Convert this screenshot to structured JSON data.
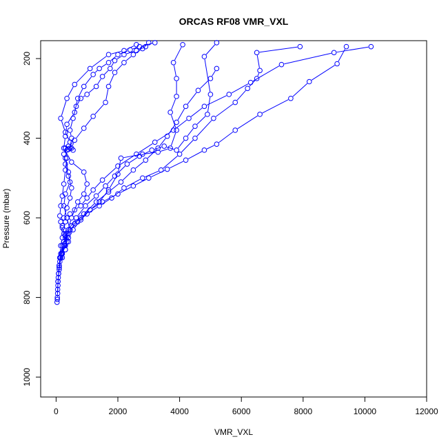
{
  "chart_data": {
    "type": "scatter",
    "title": "ORCAS RF08 VMR_VXL",
    "xlabel": "VMR_VXL",
    "ylabel": "Pressure (mbar)",
    "xlim": [
      -500,
      12000
    ],
    "ylim": [
      1050,
      155
    ],
    "y_reversed": true,
    "grid": false,
    "legend": "none",
    "color": "#0000ff",
    "xticks": [
      0,
      2000,
      4000,
      6000,
      8000,
      10000,
      12000
    ],
    "yticks": [
      200,
      400,
      600,
      800,
      1000
    ],
    "series": [
      {
        "values": [
          [
            30,
            812
          ],
          [
            40,
            805
          ],
          [
            50,
            790
          ],
          [
            60,
            770
          ],
          [
            70,
            750
          ],
          [
            100,
            730
          ],
          [
            120,
            700
          ],
          [
            150,
            670
          ],
          [
            200,
            650
          ],
          [
            250,
            630
          ],
          [
            300,
            610
          ],
          [
            350,
            600
          ],
          [
            450,
            590
          ],
          [
            600,
            580
          ],
          [
            800,
            570
          ],
          [
            1000,
            550
          ],
          [
            1200,
            530
          ],
          [
            1500,
            505
          ],
          [
            2000,
            470
          ],
          [
            2600,
            440
          ],
          [
            3200,
            410
          ],
          [
            3800,
            380
          ],
          [
            4300,
            350
          ],
          [
            4800,
            320
          ],
          [
            5600,
            290
          ],
          [
            6300,
            260
          ],
          [
            7300,
            215
          ],
          [
            9000,
            185
          ],
          [
            10200,
            170
          ]
        ]
      },
      {
        "values": [
          [
            40,
            800
          ],
          [
            60,
            760
          ],
          [
            100,
            720
          ],
          [
            150,
            690
          ],
          [
            250,
            660
          ],
          [
            350,
            640
          ],
          [
            500,
            620
          ],
          [
            800,
            600
          ],
          [
            1100,
            580
          ],
          [
            1500,
            560
          ],
          [
            2000,
            540
          ],
          [
            2500,
            520
          ],
          [
            3000,
            500
          ],
          [
            3600,
            478
          ],
          [
            4200,
            455
          ],
          [
            4800,
            430
          ],
          [
            5200,
            415
          ],
          [
            5800,
            380
          ],
          [
            6600,
            340
          ],
          [
            7600,
            300
          ],
          [
            8200,
            258
          ],
          [
            9100,
            213
          ],
          [
            9400,
            170
          ]
        ]
      },
      {
        "values": [
          [
            50,
            780
          ],
          [
            80,
            740
          ],
          [
            120,
            700
          ],
          [
            200,
            670
          ],
          [
            300,
            650
          ],
          [
            450,
            630
          ],
          [
            700,
            610
          ],
          [
            1000,
            590
          ],
          [
            1400,
            570
          ],
          [
            1800,
            550
          ],
          [
            2200,
            525
          ],
          [
            2800,
            500
          ],
          [
            3400,
            480
          ],
          [
            4000,
            440
          ],
          [
            4500,
            400
          ],
          [
            5100,
            350
          ],
          [
            5800,
            310
          ],
          [
            6200,
            275
          ],
          [
            6500,
            250
          ],
          [
            6600,
            230
          ],
          [
            6500,
            185
          ],
          [
            7900,
            170
          ]
        ]
      },
      {
        "values": [
          [
            60,
            760
          ],
          [
            100,
            725
          ],
          [
            180,
            690
          ],
          [
            280,
            665
          ],
          [
            400,
            640
          ],
          [
            600,
            615
          ],
          [
            900,
            590
          ],
          [
            1300,
            560
          ],
          [
            1700,
            535
          ],
          [
            2100,
            510
          ],
          [
            2500,
            480
          ],
          [
            2900,
            455
          ],
          [
            3300,
            425
          ],
          [
            3600,
            395
          ],
          [
            3900,
            360
          ],
          [
            4200,
            320
          ],
          [
            4600,
            280
          ],
          [
            5000,
            250
          ],
          [
            5200,
            225
          ]
        ]
      },
      {
        "values": [
          [
            80,
            740
          ],
          [
            150,
            700
          ],
          [
            250,
            660
          ],
          [
            400,
            630
          ],
          [
            650,
            600
          ],
          [
            950,
            570
          ],
          [
            1300,
            545
          ],
          [
            1600,
            520
          ],
          [
            1900,
            495
          ],
          [
            2300,
            465
          ],
          [
            2700,
            445
          ],
          [
            3100,
            430
          ],
          [
            3500,
            420
          ],
          [
            3900,
            430
          ],
          [
            4200,
            400
          ],
          [
            4500,
            370
          ],
          [
            4900,
            340
          ],
          [
            5000,
            290
          ],
          [
            4800,
            195
          ],
          [
            5200,
            160
          ]
        ]
      },
      {
        "values": [
          [
            100,
            720
          ],
          [
            200,
            690
          ],
          [
            350,
            660
          ],
          [
            550,
            630
          ],
          [
            800,
            605
          ],
          [
            1100,
            580
          ],
          [
            1400,
            560
          ],
          [
            1700,
            530
          ],
          [
            2000,
            490
          ],
          [
            2100,
            450
          ],
          [
            2800,
            440
          ],
          [
            3300,
            435
          ],
          [
            3700,
            425
          ],
          [
            3900,
            380
          ],
          [
            3700,
            335
          ],
          [
            3900,
            295
          ],
          [
            3900,
            250
          ],
          [
            3800,
            210
          ],
          [
            4100,
            165
          ]
        ]
      },
      {
        "values": [
          [
            150,
            700
          ],
          [
            250,
            670
          ],
          [
            350,
            640
          ],
          [
            500,
            600
          ],
          [
            700,
            560
          ],
          [
            900,
            540
          ],
          [
            1000,
            515
          ],
          [
            900,
            485
          ],
          [
            500,
            460
          ],
          [
            250,
            425
          ],
          [
            300,
            395
          ],
          [
            350,
            365
          ],
          [
            600,
            335
          ],
          [
            700,
            300
          ],
          [
            900,
            270
          ],
          [
            1200,
            240
          ],
          [
            1400,
            225
          ],
          [
            1700,
            210
          ],
          [
            2000,
            190
          ],
          [
            2400,
            178
          ],
          [
            2700,
            170
          ],
          [
            3200,
            160
          ]
        ]
      },
      {
        "values": [
          [
            120,
            710
          ],
          [
            200,
            690
          ],
          [
            300,
            670
          ],
          [
            400,
            650
          ],
          [
            450,
            630
          ],
          [
            350,
            600
          ],
          [
            250,
            570
          ],
          [
            300,
            540
          ],
          [
            450,
            510
          ],
          [
            400,
            485
          ],
          [
            300,
            450
          ],
          [
            350,
            430
          ],
          [
            450,
            425
          ],
          [
            500,
            400
          ],
          [
            450,
            380
          ],
          [
            550,
            350
          ],
          [
            650,
            320
          ],
          [
            800,
            300
          ],
          [
            1000,
            290
          ],
          [
            1300,
            270
          ],
          [
            1500,
            245
          ],
          [
            1750,
            225
          ],
          [
            1900,
            205
          ],
          [
            2200,
            190
          ],
          [
            2600,
            180
          ],
          [
            2900,
            170
          ]
        ]
      },
      {
        "values": [
          [
            200,
            700
          ],
          [
            300,
            680
          ],
          [
            350,
            660
          ],
          [
            250,
            640
          ],
          [
            200,
            620
          ],
          [
            250,
            600
          ],
          [
            350,
            575
          ],
          [
            450,
            550
          ],
          [
            500,
            525
          ],
          [
            400,
            495
          ],
          [
            300,
            465
          ],
          [
            250,
            440
          ],
          [
            300,
            425
          ],
          [
            400,
            420
          ],
          [
            550,
            430
          ],
          [
            450,
            410
          ],
          [
            300,
            385
          ],
          [
            150,
            350
          ],
          [
            350,
            300
          ],
          [
            600,
            265
          ],
          [
            1100,
            225
          ],
          [
            1700,
            190
          ],
          [
            2200,
            180
          ],
          [
            2600,
            165
          ]
        ]
      },
      {
        "values": [
          [
            300,
            680
          ],
          [
            400,
            660
          ],
          [
            300,
            645
          ],
          [
            200,
            625
          ],
          [
            150,
            610
          ],
          [
            120,
            595
          ],
          [
            150,
            570
          ],
          [
            200,
            545
          ],
          [
            250,
            515
          ],
          [
            300,
            480
          ],
          [
            350,
            450
          ],
          [
            300,
            425
          ],
          [
            400,
            428
          ],
          [
            500,
            425
          ],
          [
            600,
            405
          ],
          [
            900,
            375
          ],
          [
            1200,
            345
          ],
          [
            1600,
            310
          ],
          [
            1700,
            270
          ],
          [
            1900,
            235
          ],
          [
            2200,
            210
          ],
          [
            2500,
            190
          ],
          [
            2800,
            175
          ],
          [
            3000,
            160
          ]
        ]
      }
    ]
  }
}
